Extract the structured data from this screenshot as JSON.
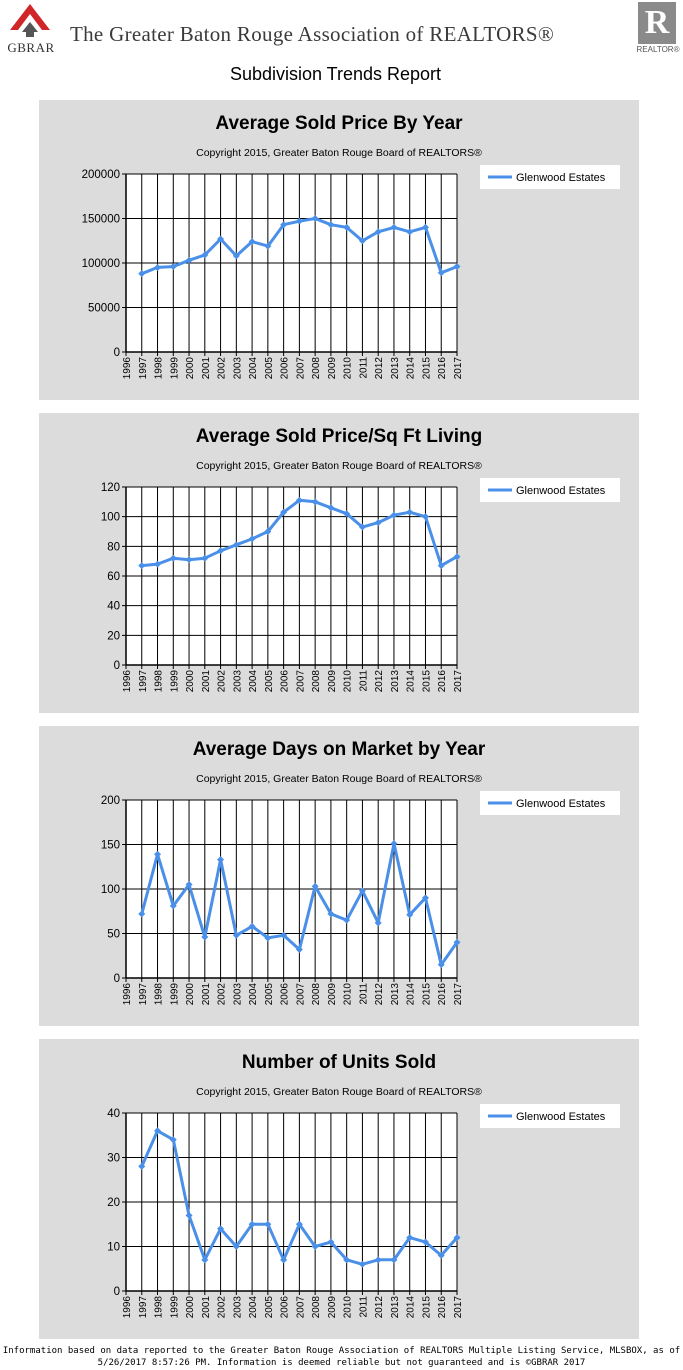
{
  "header": {
    "logo_left_text": "GBRAR",
    "association_name": "The Greater Baton Rouge Association of REALTORS®",
    "logo_right_letter": "R",
    "logo_right_text": "REALTOR®",
    "report_title": "Subdivision Trends Report"
  },
  "colors": {
    "panel_bg": "#dcdcdc",
    "series": "#4a8fe8",
    "grid": "#000000",
    "logo_red": "#d0262a"
  },
  "chart_data": [
    {
      "type": "line",
      "title": "Average Sold Price By Year",
      "subtitle": "Copyright 2015, Greater Baton Rouge Board of REALTORS®",
      "x": [
        "1996",
        "1997",
        "1998",
        "1999",
        "2000",
        "2001",
        "2002",
        "2003",
        "2004",
        "2005",
        "2006",
        "2007",
        "2008",
        "2009",
        "2010",
        "2011",
        "2012",
        "2013",
        "2014",
        "2015",
        "2016",
        "2017"
      ],
      "ylim": [
        0,
        200000
      ],
      "yticks": [
        "0",
        "50000",
        "100000",
        "150000",
        "200000"
      ],
      "legend_position": "top-right",
      "grid": true,
      "series": [
        {
          "name": "Glenwood Estates",
          "values": [
            null,
            88000,
            95000,
            96000,
            103000,
            109000,
            127000,
            108000,
            124000,
            119000,
            143000,
            147000,
            150000,
            143000,
            140000,
            125000,
            135000,
            140000,
            135000,
            140000,
            89000,
            96000
          ]
        }
      ]
    },
    {
      "type": "line",
      "title": "Average Sold Price/Sq Ft Living",
      "subtitle": "Copyright 2015, Greater Baton Rouge Board of REALTORS®",
      "x": [
        "1996",
        "1997",
        "1998",
        "1999",
        "2000",
        "2001",
        "2002",
        "2003",
        "2004",
        "2005",
        "2006",
        "2007",
        "2008",
        "2009",
        "2010",
        "2011",
        "2012",
        "2013",
        "2014",
        "2015",
        "2016",
        "2017"
      ],
      "ylim": [
        0,
        120
      ],
      "yticks": [
        "0",
        "20",
        "40",
        "60",
        "80",
        "100",
        "120"
      ],
      "legend_position": "top-right",
      "grid": true,
      "series": [
        {
          "name": "Glenwood Estates",
          "values": [
            null,
            67,
            68,
            72,
            71,
            72,
            77,
            81,
            85,
            90,
            103,
            111,
            110,
            106,
            102,
            93,
            96,
            101,
            103,
            100,
            67,
            73
          ]
        }
      ]
    },
    {
      "type": "line",
      "title": "Average Days on Market by Year",
      "subtitle": "Copyright 2015, Greater Baton Rouge Board of REALTORS®",
      "x": [
        "1996",
        "1997",
        "1998",
        "1999",
        "2000",
        "2001",
        "2002",
        "2003",
        "2004",
        "2005",
        "2006",
        "2007",
        "2008",
        "2009",
        "2010",
        "2011",
        "2012",
        "2013",
        "2014",
        "2015",
        "2016",
        "2017"
      ],
      "ylim": [
        0,
        200
      ],
      "yticks": [
        "0",
        "50",
        "100",
        "150",
        "200"
      ],
      "legend_position": "top-right",
      "grid": true,
      "series": [
        {
          "name": "Glenwood Estates",
          "values": [
            null,
            72,
            139,
            81,
            105,
            46,
            133,
            48,
            58,
            45,
            48,
            32,
            103,
            72,
            65,
            98,
            62,
            151,
            71,
            90,
            15,
            40
          ]
        }
      ]
    },
    {
      "type": "line",
      "title": "Number of Units Sold",
      "subtitle": "Copyright 2015, Greater Baton Rouge Board of REALTORS®",
      "x": [
        "1996",
        "1997",
        "1998",
        "1999",
        "2000",
        "2001",
        "2002",
        "2003",
        "2004",
        "2005",
        "2006",
        "2007",
        "2008",
        "2009",
        "2010",
        "2011",
        "2012",
        "2013",
        "2014",
        "2015",
        "2016",
        "2017"
      ],
      "ylim": [
        0,
        40
      ],
      "yticks": [
        "0",
        "10",
        "20",
        "30",
        "40"
      ],
      "legend_position": "top-right",
      "grid": true,
      "series": [
        {
          "name": "Glenwood Estates",
          "values": [
            null,
            28,
            36,
            34,
            17,
            7,
            14,
            10,
            15,
            15,
            7,
            15,
            10,
            11,
            7,
            6,
            7,
            7,
            12,
            11,
            8,
            12
          ]
        }
      ]
    }
  ],
  "footer": {
    "line1": "Information based on data reported to the Greater Baton Rouge Association of REALTORS Multiple Listing Service, MLSBOX, as of",
    "line2": "5/26/2017 8:57:26 PM. Information is deemed reliable but not guaranteed and is ©GBRAR 2017"
  }
}
